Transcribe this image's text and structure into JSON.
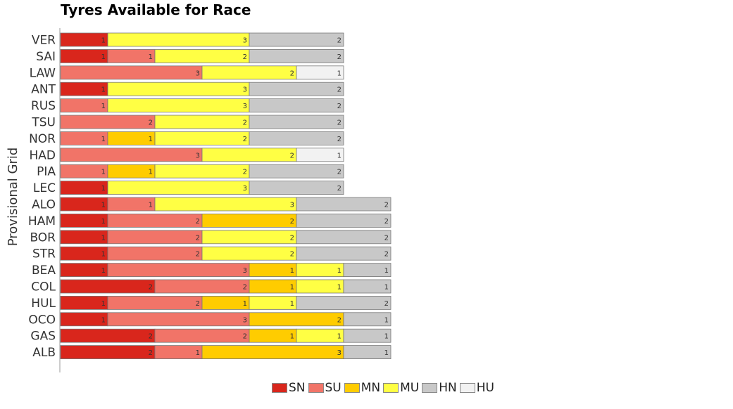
{
  "chart_data": {
    "type": "bar",
    "orientation": "horizontal",
    "stacked": true,
    "title": "Tyres Available for Race",
    "ylabel": "Provisional Grid",
    "xlabel": "",
    "grid": false,
    "legend_position": "bottom",
    "categories": [
      "VER",
      "SAI",
      "LAW",
      "ANT",
      "RUS",
      "TSU",
      "NOR",
      "HAD",
      "PIA",
      "LEC",
      "ALO",
      "HAM",
      "BOR",
      "STR",
      "BEA",
      "COL",
      "HUL",
      "OCO",
      "GAS",
      "ALB"
    ],
    "series": [
      {
        "name": "SN",
        "color": "#d9261c",
        "values": [
          1,
          1,
          0,
          1,
          0,
          0,
          0,
          0,
          0,
          1,
          1,
          1,
          1,
          1,
          1,
          2,
          1,
          1,
          2,
          2
        ]
      },
      {
        "name": "SU",
        "color": "#f17468",
        "values": [
          0,
          1,
          3,
          0,
          1,
          2,
          1,
          3,
          1,
          0,
          1,
          2,
          2,
          2,
          3,
          2,
          2,
          3,
          2,
          1
        ]
      },
      {
        "name": "MN",
        "color": "#ffcc00",
        "values": [
          0,
          0,
          0,
          0,
          0,
          0,
          1,
          0,
          1,
          0,
          0,
          2,
          0,
          0,
          1,
          1,
          1,
          2,
          1,
          3
        ]
      },
      {
        "name": "MU",
        "color": "#ffff44",
        "values": [
          3,
          2,
          2,
          3,
          3,
          2,
          2,
          2,
          2,
          3,
          3,
          0,
          2,
          2,
          1,
          1,
          1,
          0,
          1,
          0
        ]
      },
      {
        "name": "HN",
        "color": "#c8c8c8",
        "values": [
          2,
          2,
          0,
          2,
          2,
          2,
          2,
          0,
          2,
          2,
          2,
          2,
          2,
          2,
          1,
          1,
          2,
          1,
          1,
          1
        ]
      },
      {
        "name": "HU",
        "color": "#f2f2f2",
        "values": [
          0,
          0,
          1,
          0,
          0,
          0,
          0,
          1,
          0,
          0,
          0,
          0,
          0,
          0,
          0,
          0,
          0,
          0,
          0,
          0
        ]
      }
    ]
  },
  "legend": {
    "items": [
      {
        "label": "SN",
        "color": "#d9261c"
      },
      {
        "label": "SU",
        "color": "#f17468"
      },
      {
        "label": "MN",
        "color": "#ffcc00"
      },
      {
        "label": "MU",
        "color": "#ffff44"
      },
      {
        "label": "HN",
        "color": "#c8c8c8"
      },
      {
        "label": "HU",
        "color": "#f2f2f2"
      }
    ]
  }
}
